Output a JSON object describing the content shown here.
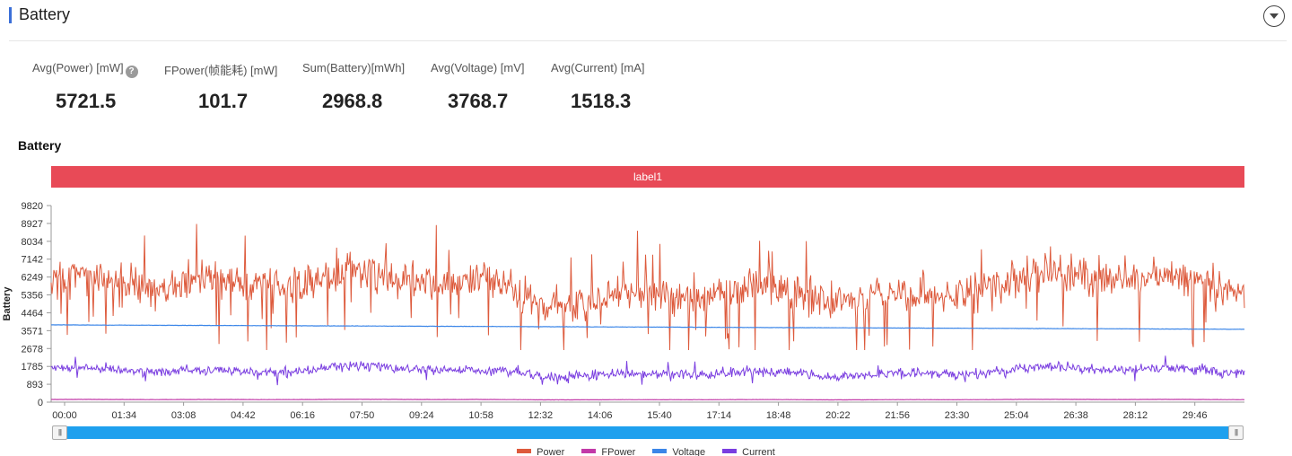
{
  "section": {
    "title": "Battery"
  },
  "metrics": [
    {
      "label": "Avg(Power) [mW]",
      "value": "5721.5",
      "has_help": true
    },
    {
      "label": "FPower(帧能耗) [mW]",
      "value": "101.7"
    },
    {
      "label": "Sum(Battery)[mWh]",
      "value": "2968.8"
    },
    {
      "label": "Avg(Voltage) [mV]",
      "value": "3768.7"
    },
    {
      "label": "Avg(Current) [mA]",
      "value": "1518.3"
    }
  ],
  "chart_title": "Battery",
  "label_band": "label1",
  "chart_data": {
    "type": "line",
    "ylabel": "Battery",
    "yticks": [
      0,
      893,
      1785,
      2678,
      3571,
      4464,
      5356,
      6249,
      7142,
      8034,
      8927,
      9820
    ],
    "ylim": [
      0,
      9820
    ],
    "xticks": [
      "00:00",
      "01:34",
      "03:08",
      "04:42",
      "06:16",
      "07:50",
      "09:24",
      "10:58",
      "12:32",
      "14:06",
      "15:40",
      "17:14",
      "18:48",
      "20:22",
      "21:56",
      "23:30",
      "25:04",
      "26:38",
      "28:12",
      "29:46"
    ],
    "grid": false,
    "legend": "bottom",
    "series": [
      {
        "name": "Power",
        "color": "#dd5a3c",
        "approx_mean": 5721.5,
        "approx_range": [
          2600,
          8900
        ]
      },
      {
        "name": "FPower",
        "color": "#c23aa8",
        "approx_mean": 101.7
      },
      {
        "name": "Voltage",
        "color": "#3b86e8",
        "approx_start": 3860,
        "approx_end": 3640
      },
      {
        "name": "Current",
        "color": "#7a3ee0",
        "approx_mean": 1518.3,
        "approx_range": [
          700,
          2300
        ]
      }
    ]
  },
  "legend": [
    {
      "name": "Power",
      "color": "#dd5a3c"
    },
    {
      "name": "FPower",
      "color": "#c23aa8"
    },
    {
      "name": "Voltage",
      "color": "#3b86e8"
    },
    {
      "name": "Current",
      "color": "#7a3ee0"
    }
  ]
}
